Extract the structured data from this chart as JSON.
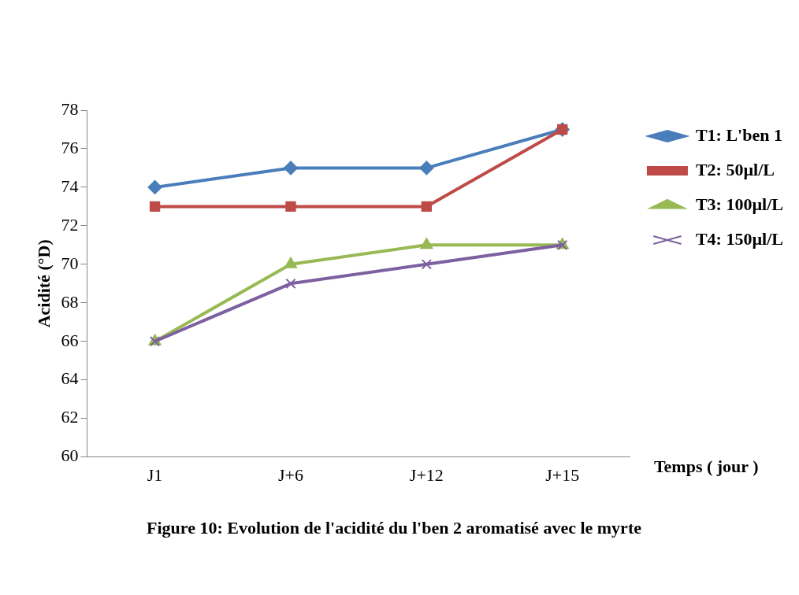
{
  "chart_data": {
    "type": "line",
    "ylabel": "Acidité (°D)",
    "xlabel": "Temps ( jour )",
    "categories": [
      "J1",
      "J+6",
      "J+12",
      "J+15"
    ],
    "ylim": [
      60,
      78
    ],
    "yticks": [
      60,
      62,
      64,
      66,
      68,
      70,
      72,
      74,
      76,
      78
    ],
    "grid": false,
    "legend": "right",
    "line_style": "solid",
    "series": [
      {
        "name": "T1: L'ben 1",
        "color": "#4a7ebb",
        "marker": "diamond",
        "values": [
          74,
          75,
          75,
          77
        ]
      },
      {
        "name": "T2: 50µl/L",
        "color": "#be4b48",
        "marker": "square",
        "values": [
          73,
          73,
          73,
          77
        ]
      },
      {
        "name": "T3: 100µl/L",
        "color": "#98b954",
        "marker": "triangle",
        "values": [
          66,
          70,
          71,
          71
        ]
      },
      {
        "name": "T4: 150µl/L",
        "color": "#7d60a0",
        "marker": "cross",
        "values": [
          66,
          69,
          70,
          71
        ]
      }
    ],
    "annotations": [
      "Figure 10: Evolution de l'acidité du l'ben 2 aromatisé avec le myrte"
    ]
  }
}
